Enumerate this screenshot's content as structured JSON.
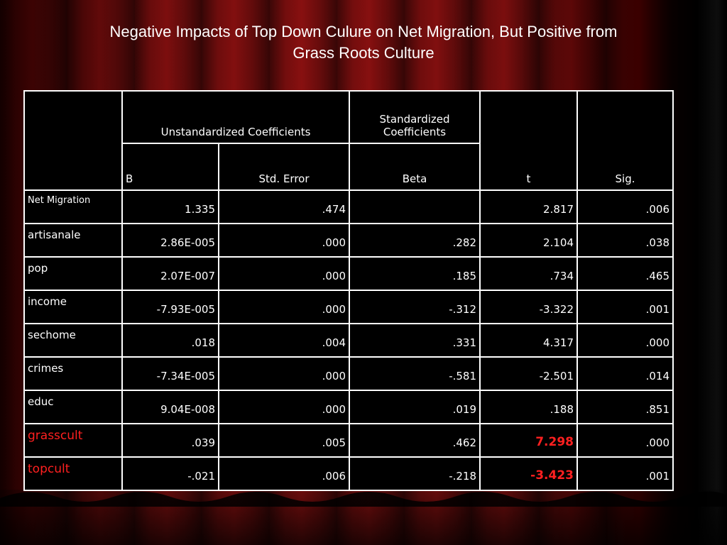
{
  "title_line1": "Negative Impacts of  Top Down Culure on Net Migration, But Positive from",
  "title_line2": "Grass Roots Culture",
  "headers": {
    "unstd": "Unstandardized Coefficients",
    "std_line1": "Standardized",
    "std_line2": "Coefficients",
    "b": "B",
    "se": "Std. Error",
    "beta": "Beta",
    "t": "t",
    "sig": "Sig."
  },
  "rows": [
    {
      "label": "Net Migration",
      "b": "1.335",
      "se": ".474",
      "beta": "",
      "t": "2.817",
      "sig": ".006"
    },
    {
      "label": "artisanale",
      "b": "2.86E-005",
      "se": ".000",
      "beta": ".282",
      "t": "2.104",
      "sig": ".038"
    },
    {
      "label": "pop",
      "b": "2.07E-007",
      "se": ".000",
      "beta": ".185",
      "t": ".734",
      "sig": ".465"
    },
    {
      "label": "income",
      "b": "-7.93E-005",
      "se": ".000",
      "beta": "-.312",
      "t": "-3.322",
      "sig": ".001"
    },
    {
      "label": "sechome",
      "b": ".018",
      "se": ".004",
      "beta": ".331",
      "t": "4.317",
      "sig": ".000"
    },
    {
      "label": "crimes",
      "b": "-7.34E-005",
      "se": ".000",
      "beta": "-.581",
      "t": "-2.501",
      "sig": ".014"
    },
    {
      "label": "educ",
      "b": "9.04E-008",
      "se": ".000",
      "beta": ".019",
      "t": ".188",
      "sig": ".851"
    },
    {
      "label": "grasscult",
      "b": ".039",
      "se": ".005",
      "beta": ".462",
      "t": "7.298",
      "sig": ".000"
    },
    {
      "label": "topcult",
      "b": "-.021",
      "se": ".006",
      "beta": "-.218",
      "t": "-3.423",
      "sig": ".001"
    }
  ],
  "colors": {
    "highlight": "#ff2020",
    "background": "#7a0e0e"
  }
}
